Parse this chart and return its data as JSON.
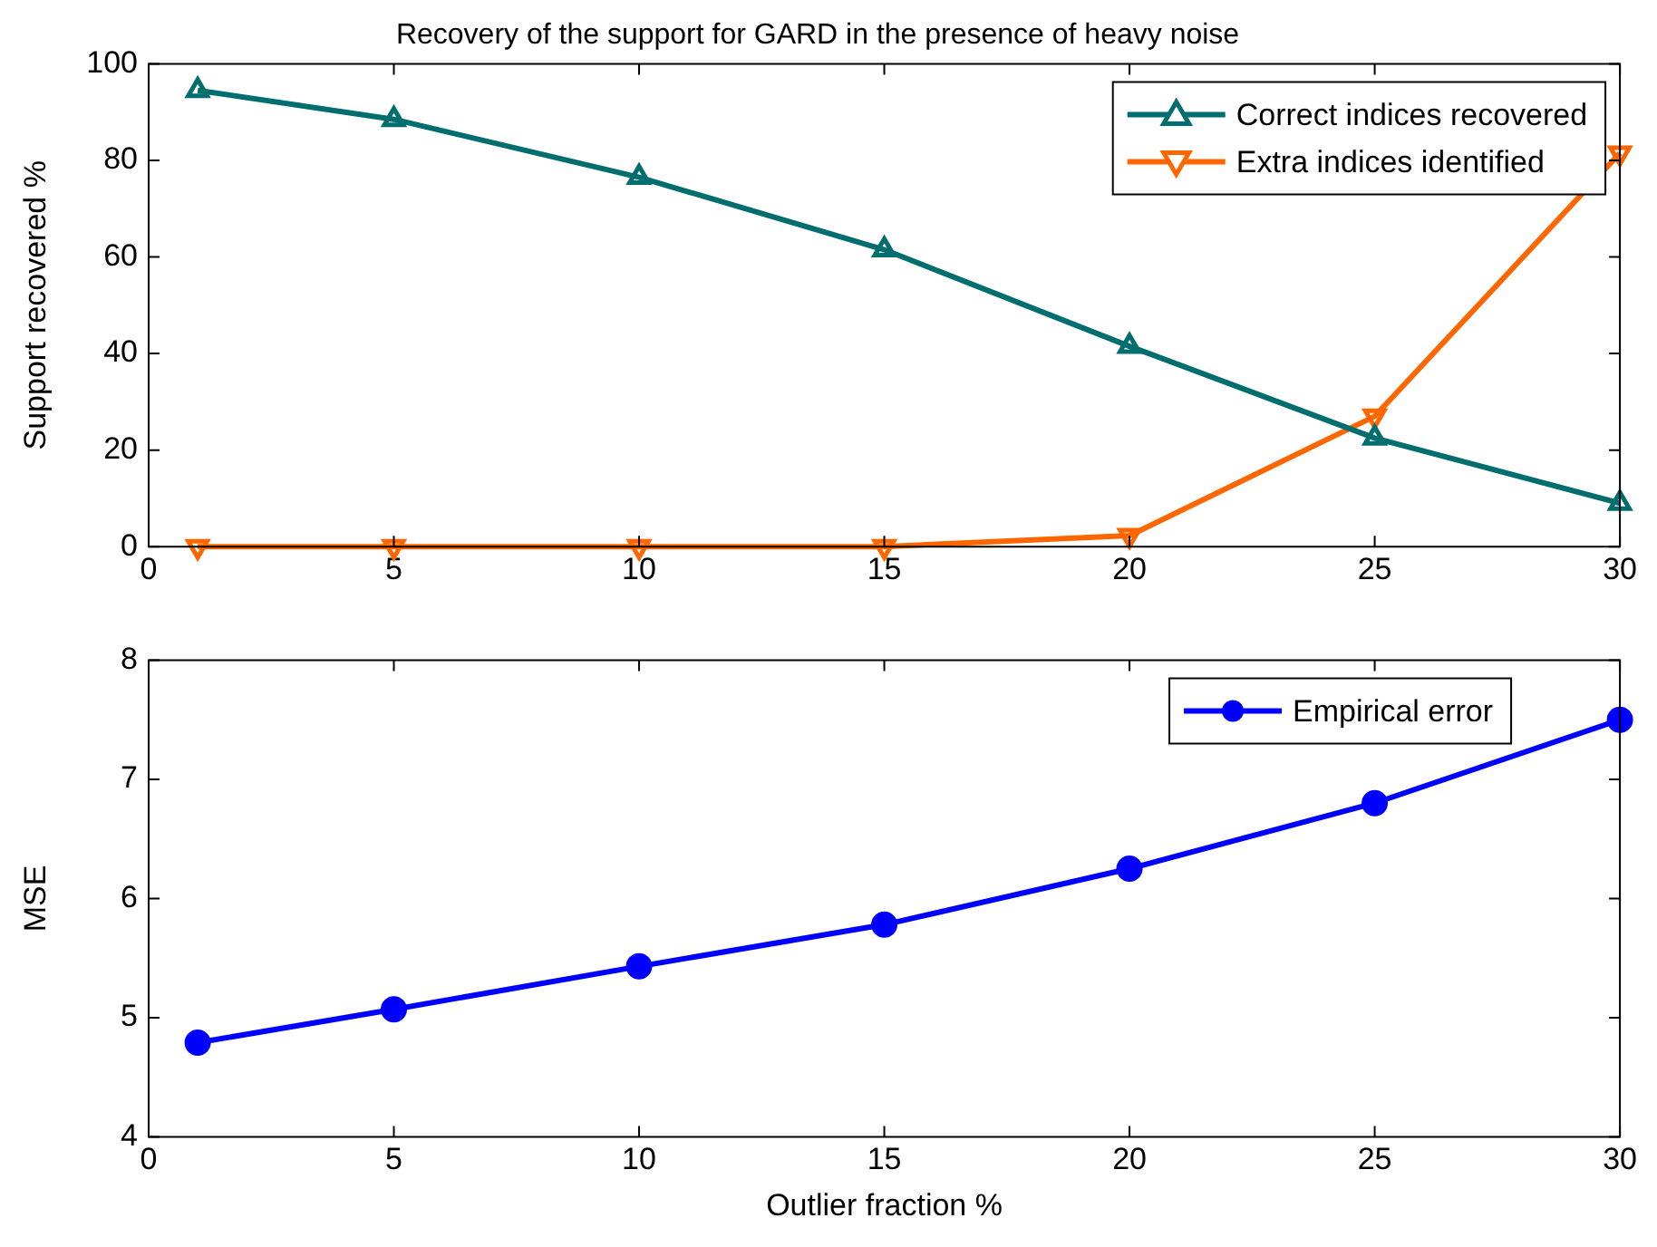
{
  "chart_data": [
    {
      "type": "line",
      "title": "Recovery of the support for GARD in the presence of heavy noise",
      "ylabel": "Support recovered %",
      "x": [
        1,
        5,
        10,
        15,
        20,
        25,
        30
      ],
      "xlim": [
        0,
        30
      ],
      "xticks": [
        0,
        5,
        10,
        15,
        20,
        25,
        30
      ],
      "ylim": [
        0,
        100
      ],
      "yticks": [
        0,
        20,
        40,
        60,
        80,
        100
      ],
      "legend": "top right",
      "grid": false,
      "series": [
        {
          "name": "Correct indices recovered",
          "color": "#006e6e",
          "marker": "triangle",
          "values": [
            94.5,
            88.5,
            76.5,
            61.5,
            41.5,
            22.5,
            9
          ]
        },
        {
          "name": "Extra indices identified",
          "color": "#ff6600",
          "marker": "triangle-down",
          "values": [
            0,
            0,
            0,
            0,
            2.3,
            27,
            81.5
          ]
        }
      ]
    },
    {
      "type": "line",
      "xlabel": "Outlier fraction %",
      "ylabel": "MSE",
      "x": [
        1,
        5,
        10,
        15,
        20,
        25,
        30
      ],
      "xlim": [
        0,
        30
      ],
      "xticks": [
        0,
        5,
        10,
        15,
        20,
        25,
        30
      ],
      "ylim": [
        4,
        8
      ],
      "yticks": [
        4,
        5,
        6,
        7,
        8
      ],
      "legend": "top right",
      "grid": false,
      "series": [
        {
          "name": "Empirical error",
          "color": "#0000ff",
          "marker": "circle",
          "values": [
            4.79,
            5.07,
            5.43,
            5.78,
            6.25,
            6.8,
            7.5
          ]
        }
      ]
    }
  ]
}
